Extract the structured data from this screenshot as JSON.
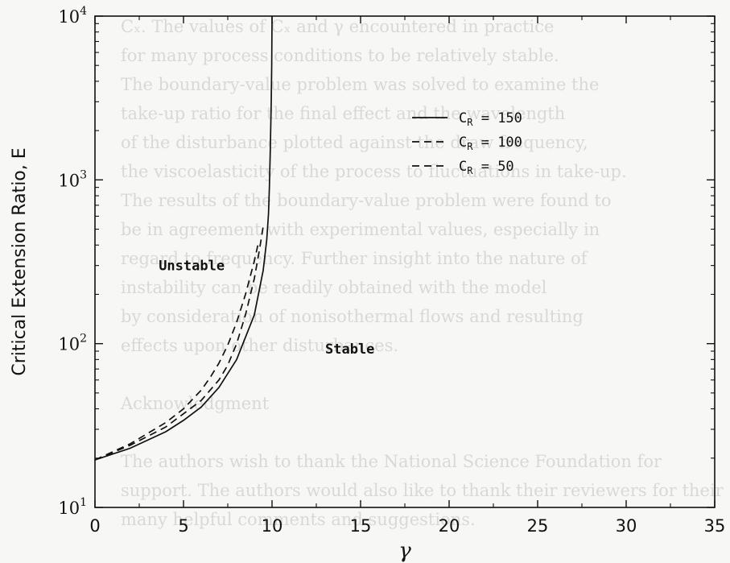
{
  "chart_data": {
    "type": "line",
    "xlabel": "γ",
    "ylabel": "Critical Extension Ratio, E",
    "xlim": [
      0,
      35
    ],
    "ylim_log10": [
      1,
      4
    ],
    "y_scale": "log",
    "x_ticks": [
      "0",
      "5",
      "10",
      "15",
      "20",
      "25",
      "30",
      "35"
    ],
    "y_ticks": [
      {
        "base": "10",
        "exp": "1"
      },
      {
        "base": "10",
        "exp": "2"
      },
      {
        "base": "10",
        "exp": "3"
      },
      {
        "base": "10",
        "exp": "4"
      }
    ],
    "grid": false,
    "legend_position": "top-right",
    "legend_var": "C",
    "legend_sub": "R",
    "series": [
      {
        "name": "150",
        "style": "solid",
        "x": [
          0,
          2,
          4,
          5,
          6,
          7,
          8,
          9,
          9.5,
          9.7,
          9.8,
          9.85,
          9.9,
          9.95,
          9.98,
          10
        ],
        "y": [
          19.5,
          23,
          29,
          34,
          41,
          54,
          80,
          150,
          280,
          430,
          620,
          900,
          1500,
          2800,
          5000,
          10000
        ]
      },
      {
        "name": "100",
        "style": "dashed",
        "x": [
          0,
          2,
          4,
          6,
          7,
          7.5,
          8,
          8.5,
          9,
          9.3,
          9.5
        ],
        "y": [
          19.5,
          24,
          31,
          45,
          60,
          74,
          100,
          150,
          250,
          380,
          520
        ]
      },
      {
        "name": "50",
        "style": "dashed",
        "x": [
          0,
          2,
          4,
          5,
          6,
          6.5,
          7,
          7.5,
          8,
          8.5,
          9,
          9.2
        ],
        "y": [
          19.5,
          24.5,
          33,
          40,
          52,
          62,
          76,
          98,
          135,
          200,
          320,
          400
        ]
      }
    ],
    "annotations": [
      {
        "text": "Unstable",
        "x": 3.6,
        "y": 280
      },
      {
        "text": "Stable",
        "x": 13,
        "y": 87
      }
    ]
  },
  "background_text": [
    "Cₓ. The values of Cₓ and γ encountered in practice",
    "for many process conditions to be relatively stable.",
    "The boundary-value problem was solved to examine the",
    "take-up ratio for the final effect and the wavelength",
    "of the disturbance plotted against the draw frequency,",
    "the viscoelasticity of the process to fluctuations in take-up.",
    "The results of the boundary-value problem were found to",
    "be in agreement with experimental values, especially in",
    "regard to frequency. Further insight into the nature of",
    "instability can be readily obtained with the model",
    "by consideration of nonisothermal flows and resulting",
    "effects upon other disturbances.",
    "",
    "Acknowledgment",
    "",
    "The authors wish to thank the National Science Foundation for",
    "support. The authors would also like to thank their reviewers for their",
    "many helpful comments and suggestions."
  ]
}
